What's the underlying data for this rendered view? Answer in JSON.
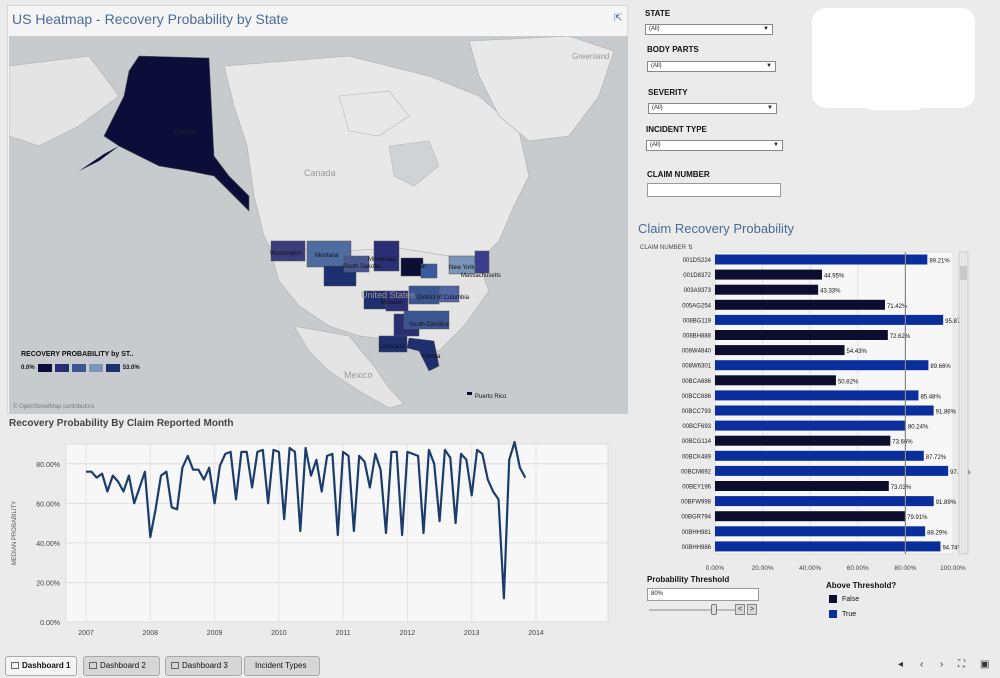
{
  "map": {
    "title": "US Heatmap - Recovery Probability by State",
    "popout_icon": "popout-icon",
    "country_labels": {
      "greenland": "Greenland",
      "canada": "Canada",
      "united_states": "United States",
      "mexico": "Mexico"
    },
    "state_labels": {
      "alaska": "Alaska",
      "washington": "Washington",
      "montana": "Montana",
      "south_dakota": "South Dakota",
      "minnesota": "Minnesota",
      "michigan": "Michigan",
      "new_york": "New York",
      "massachusetts": "Massachusetts",
      "missouri": "Missouri",
      "district_of_columbia": "District of Columbia",
      "south_carolina": "South Carolina",
      "louisiana": "Louisiana",
      "florida": "Florida",
      "puerto_rico": "Puerto Rico"
    },
    "legend_title": "RECOVERY PROBABILITY by ST..",
    "legend_min": "0.0%",
    "legend_max": "53.0%",
    "legend_colors": [
      "#0d0d3a",
      "#2a2e72",
      "#3b5591",
      "#7a95b8",
      "#1d2f6e"
    ],
    "attribution": "© OpenStreetMap contributors"
  },
  "filters": {
    "state": {
      "label": "STATE",
      "value": "(All)"
    },
    "body_parts": {
      "label": "BODY PARTS",
      "value": "(All)"
    },
    "severity": {
      "label": "SEVERITY",
      "value": "(All)"
    },
    "incident_type": {
      "label": "INCIDENT TYPE",
      "value": "(All)"
    },
    "claim_number": {
      "label": "CLAIM NUMBER",
      "value": ""
    }
  },
  "line_chart_title": "Recovery Probability By Claim Reported Month",
  "bar_chart_title": "Claim Recovery Probability",
  "bar_column_header": "CLAIM NUMBER",
  "threshold": {
    "label": "Probability Threshold",
    "value": "80%",
    "level": 0.8,
    "decrement": "<",
    "increment": ">"
  },
  "above_threshold": {
    "title": "Above Threshold?",
    "items": [
      {
        "label": "False",
        "color": "#0d0d2e"
      },
      {
        "label": "True",
        "color": "#0a2e9c"
      }
    ]
  },
  "tabs": [
    {
      "label": "Dashboard 1",
      "active": true
    },
    {
      "label": "Dashboard 2",
      "active": false
    },
    {
      "label": "Dashboard 3",
      "active": false
    },
    {
      "label": "Incident Types",
      "active": false
    }
  ],
  "colors": {
    "accent_title": "#4a6a9a",
    "true_bar": "#0a2e9c",
    "false_bar": "#0d0d2e",
    "line": "#1b3d6b"
  },
  "chart_data": [
    {
      "type": "line",
      "title": "Recovery Probability By Claim Reported Month",
      "xlabel": "",
      "ylabel": "MEDIAN PROBABILITY",
      "x_ticks": [
        "2007",
        "2008",
        "2009",
        "2010",
        "2011",
        "2012",
        "2013",
        "2014"
      ],
      "y_ticks": [
        "0.00%",
        "20.00%",
        "40.00%",
        "60.00%",
        "80.00%"
      ],
      "ylim": [
        0,
        90
      ],
      "xlim": [
        "2007-01",
        "2014-01"
      ],
      "grid": true,
      "series": [
        {
          "x": [
            "2007-01",
            "2007-02",
            "2007-03",
            "2007-04",
            "2007-05",
            "2007-06",
            "2007-07",
            "2007-08",
            "2007-09",
            "2007-10",
            "2007-11",
            "2007-12",
            "2008-01",
            "2008-02",
            "2008-03",
            "2008-04",
            "2008-05",
            "2008-06",
            "2008-07",
            "2008-08",
            "2008-09",
            "2008-10",
            "2008-11",
            "2008-12",
            "2009-01",
            "2009-02",
            "2009-03",
            "2009-04",
            "2009-05",
            "2009-06",
            "2009-07",
            "2009-08",
            "2009-09",
            "2009-10",
            "2009-11",
            "2009-12",
            "2010-01",
            "2010-02",
            "2010-03",
            "2010-04",
            "2010-05",
            "2010-06",
            "2010-07",
            "2010-08",
            "2010-09",
            "2010-10",
            "2010-11",
            "2010-12",
            "2011-01",
            "2011-02",
            "2011-03",
            "2011-04",
            "2011-05",
            "2011-06",
            "2011-07",
            "2011-08",
            "2011-09",
            "2011-10",
            "2011-11",
            "2011-12",
            "2012-01",
            "2012-02",
            "2012-03",
            "2012-04",
            "2012-05",
            "2012-06",
            "2012-07",
            "2012-08",
            "2012-09",
            "2012-10",
            "2012-11",
            "2012-12",
            "2013-01",
            "2013-02",
            "2013-03",
            "2013-04",
            "2013-05",
            "2013-06",
            "2013-07",
            "2013-08",
            "2013-09",
            "2013-10",
            "2013-11"
          ],
          "values": [
            76,
            76,
            73,
            75,
            66,
            74,
            71,
            66,
            74,
            60,
            68,
            76,
            43,
            57,
            74,
            76,
            58,
            57,
            78,
            84,
            77,
            77,
            72,
            78,
            60,
            79,
            85,
            86,
            62,
            86,
            86,
            68,
            86,
            87,
            60,
            87,
            86,
            52,
            88,
            86,
            46,
            88,
            74,
            82,
            66,
            84,
            85,
            44,
            86,
            84,
            46,
            84,
            81,
            68,
            85,
            77,
            45,
            86,
            86,
            44,
            86,
            85,
            84,
            45,
            87,
            80,
            51,
            87,
            83,
            50,
            85,
            82,
            64,
            87,
            85,
            72,
            66,
            62,
            12,
            82,
            91,
            78,
            73
          ]
        }
      ]
    },
    {
      "type": "bar",
      "title": "Claim Recovery Probability",
      "xlabel": "",
      "ylabel": "CLAIM NUMBER",
      "x_ticks": [
        "0.00%",
        "20.00%",
        "40.00%",
        "60.00%",
        "80.00%",
        "100.00%"
      ],
      "xlim": [
        0,
        100
      ],
      "threshold": 80,
      "categories": [
        "001DS224",
        "001D8372",
        "003A9373",
        "005AG254",
        "008BG119",
        "008BH888",
        "008W4840",
        "008W6301",
        "00BCA686",
        "00BCC686",
        "00BCC793",
        "00BCF693",
        "00BCG114",
        "00BCK489",
        "00BCM692",
        "00BEY196",
        "00BFW998",
        "00BGR794",
        "00BHH981",
        "00BHH986"
      ],
      "values": [
        89.21,
        44.95,
        43.33,
        71.42,
        95.87,
        72.62,
        54.43,
        89.66,
        50.82,
        85.48,
        91.86,
        80.24,
        73.66,
        87.72,
        97.97,
        73.03,
        91.89,
        79.91,
        88.29,
        94.74
      ],
      "value_labels": [
        "89.21%",
        "44.95%",
        "43.33%",
        "71.42%",
        "95.87%",
        "72.62%",
        "54.43%",
        "89.66%",
        "50.82%",
        "85.48%",
        "91.86%",
        "80.24%",
        "73.66%",
        "87.72%",
        "97.97%",
        "73.03%",
        "91.89%",
        "79.91%",
        "88.29%",
        "94.74%"
      ]
    }
  ]
}
